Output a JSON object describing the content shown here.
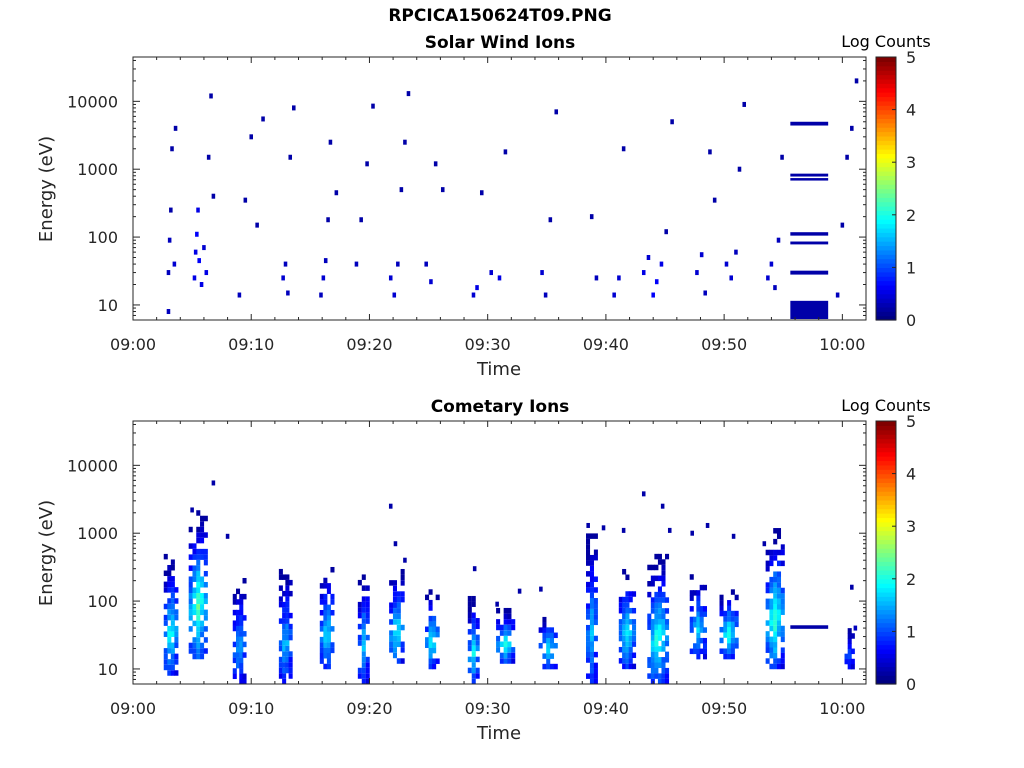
{
  "figure": {
    "title": "RPCICA150624T09.PNG"
  },
  "chart_data": [
    {
      "type": "heatmap",
      "title": "Solar Wind Ions",
      "xlabel": "Time",
      "ylabel": "Energy (eV)",
      "x_ticks": [
        "09:00",
        "09:10",
        "09:20",
        "09:30",
        "09:40",
        "09:50",
        "10:00"
      ],
      "x_range_minutes": [
        0,
        62
      ],
      "y_scale": "log",
      "y_range": [
        6,
        45000
      ],
      "y_ticks": [
        10,
        100,
        1000,
        10000
      ],
      "y_tick_labels": [
        "10",
        "100",
        "1000",
        "10000"
      ],
      "colorbar": {
        "label": "Log Counts",
        "range": [
          0,
          5
        ],
        "ticks": [
          "0",
          "1",
          "2",
          "3",
          "4",
          "5"
        ],
        "colormap": "jet"
      },
      "cells": [
        [
          3.0,
          8,
          0.3
        ],
        [
          3.0,
          30,
          0.3
        ],
        [
          3.1,
          90,
          0.3
        ],
        [
          3.2,
          250,
          0.2
        ],
        [
          3.3,
          2000,
          0.2
        ],
        [
          3.5,
          40,
          0.4
        ],
        [
          3.6,
          4000,
          0.2
        ],
        [
          5.2,
          25,
          0.5
        ],
        [
          5.3,
          60,
          0.5
        ],
        [
          5.4,
          110,
          0.6
        ],
        [
          5.5,
          250,
          0.5
        ],
        [
          5.6,
          45,
          0.6
        ],
        [
          5.8,
          20,
          0.5
        ],
        [
          6.0,
          70,
          0.4
        ],
        [
          6.2,
          30,
          0.5
        ],
        [
          6.4,
          1500,
          0.2
        ],
        [
          6.6,
          12000,
          0.2
        ],
        [
          6.8,
          400,
          0.2
        ],
        [
          9.0,
          14,
          0.3
        ],
        [
          9.5,
          350,
          0.2
        ],
        [
          10.0,
          3000,
          0.2
        ],
        [
          10.5,
          150,
          0.2
        ],
        [
          11.0,
          5500,
          0.2
        ],
        [
          12.7,
          25,
          0.4
        ],
        [
          12.9,
          40,
          0.3
        ],
        [
          13.1,
          15,
          0.3
        ],
        [
          13.3,
          1500,
          0.2
        ],
        [
          13.6,
          8000,
          0.2
        ],
        [
          15.9,
          14,
          0.3
        ],
        [
          16.1,
          25,
          0.4
        ],
        [
          16.3,
          45,
          0.3
        ],
        [
          16.5,
          180,
          0.2
        ],
        [
          16.7,
          2500,
          0.2
        ],
        [
          17.2,
          450,
          0.2
        ],
        [
          18.9,
          40,
          0.3
        ],
        [
          19.3,
          180,
          0.2
        ],
        [
          19.8,
          1200,
          0.2
        ],
        [
          20.3,
          8500,
          0.2
        ],
        [
          21.8,
          25,
          0.4
        ],
        [
          22.1,
          14,
          0.4
        ],
        [
          22.4,
          40,
          0.3
        ],
        [
          22.7,
          500,
          0.2
        ],
        [
          23.0,
          2500,
          0.2
        ],
        [
          23.3,
          13000,
          0.2
        ],
        [
          24.8,
          40,
          0.3
        ],
        [
          25.2,
          22,
          0.4
        ],
        [
          25.6,
          1200,
          0.2
        ],
        [
          26.2,
          500,
          0.2
        ],
        [
          28.8,
          14,
          0.4
        ],
        [
          29.1,
          18,
          0.5
        ],
        [
          29.5,
          450,
          0.2
        ],
        [
          30.3,
          30,
          0.4
        ],
        [
          31.0,
          25,
          0.5
        ],
        [
          31.5,
          1800,
          0.2
        ],
        [
          34.6,
          30,
          0.4
        ],
        [
          34.9,
          14,
          0.3
        ],
        [
          35.3,
          180,
          0.2
        ],
        [
          35.8,
          7000,
          0.2
        ],
        [
          38.8,
          200,
          0.2
        ],
        [
          39.2,
          25,
          0.3
        ],
        [
          40.7,
          14,
          0.4
        ],
        [
          41.1,
          25,
          0.4
        ],
        [
          41.5,
          2000,
          0.2
        ],
        [
          43.2,
          30,
          0.5
        ],
        [
          43.6,
          50,
          0.4
        ],
        [
          44.0,
          14,
          0.6
        ],
        [
          44.3,
          22,
          0.6
        ],
        [
          44.7,
          40,
          0.5
        ],
        [
          45.1,
          120,
          0.2
        ],
        [
          45.6,
          5000,
          0.2
        ],
        [
          47.7,
          30,
          0.4
        ],
        [
          48.1,
          55,
          0.4
        ],
        [
          48.4,
          15,
          0.3
        ],
        [
          48.8,
          1800,
          0.2
        ],
        [
          49.2,
          350,
          0.2
        ],
        [
          50.2,
          40,
          0.4
        ],
        [
          50.6,
          25,
          0.4
        ],
        [
          51.0,
          60,
          0.3
        ],
        [
          51.3,
          1000,
          0.2
        ],
        [
          51.7,
          9000,
          0.2
        ],
        [
          53.7,
          25,
          0.4
        ],
        [
          54.0,
          40,
          0.4
        ],
        [
          54.3,
          18,
          0.3
        ],
        [
          54.6,
          90,
          0.3
        ],
        [
          54.9,
          1500,
          0.2
        ],
        [
          59.6,
          14,
          0.3
        ],
        [
          60.0,
          150,
          0.2
        ],
        [
          60.4,
          1500,
          0.2
        ],
        [
          60.8,
          4000,
          0.2
        ],
        [
          61.2,
          20000,
          0.2
        ]
      ],
      "bands": [
        {
          "t_start": 55.6,
          "t_end": 58.8,
          "e_low": 4400,
          "e_high": 5000,
          "value": 0.2
        },
        {
          "t_start": 55.6,
          "t_end": 58.8,
          "e_low": 780,
          "e_high": 860,
          "value": 0.2
        },
        {
          "t_start": 55.6,
          "t_end": 58.8,
          "e_low": 680,
          "e_high": 740,
          "value": 0.2
        },
        {
          "t_start": 55.6,
          "t_end": 58.8,
          "e_low": 105,
          "e_high": 118,
          "value": 0.2
        },
        {
          "t_start": 55.6,
          "t_end": 58.8,
          "e_low": 78,
          "e_high": 86,
          "value": 0.2
        },
        {
          "t_start": 55.6,
          "t_end": 58.8,
          "e_low": 28,
          "e_high": 32,
          "value": 0.2
        },
        {
          "t_start": 55.6,
          "t_end": 58.8,
          "e_low": 6.2,
          "e_high": 11.5,
          "value": 0.2
        }
      ]
    },
    {
      "type": "heatmap",
      "title": "Cometary Ions",
      "xlabel": "Time",
      "ylabel": "Energy (eV)",
      "x_ticks": [
        "09:00",
        "09:10",
        "09:20",
        "09:30",
        "09:40",
        "09:50",
        "10:00"
      ],
      "x_range_minutes": [
        0,
        62
      ],
      "y_scale": "log",
      "y_range": [
        6,
        45000
      ],
      "y_ticks": [
        10,
        100,
        1000,
        10000
      ],
      "y_tick_labels": [
        "10",
        "100",
        "1000",
        "10000"
      ],
      "colorbar": {
        "label": "Log Counts",
        "range": [
          0,
          5
        ],
        "ticks": [
          "0",
          "1",
          "2",
          "3",
          "4",
          "5"
        ],
        "colormap": "jet"
      },
      "bursts": [
        {
          "t": 3.2,
          "w": 1.2,
          "e_low": 8,
          "e_high": 500,
          "peak": 1.9
        },
        {
          "t": 5.5,
          "w": 1.6,
          "e_low": 14,
          "e_high": 2200,
          "peak": 2.2
        },
        {
          "t": 9.0,
          "w": 1.1,
          "e_low": 6,
          "e_high": 220,
          "peak": 1.4
        },
        {
          "t": 12.9,
          "w": 1.1,
          "e_low": 6,
          "e_high": 300,
          "peak": 1.5
        },
        {
          "t": 16.4,
          "w": 1.2,
          "e_low": 10,
          "e_high": 320,
          "peak": 1.7
        },
        {
          "t": 19.5,
          "w": 1.0,
          "e_low": 6,
          "e_high": 300,
          "peak": 1.5
        },
        {
          "t": 22.3,
          "w": 1.3,
          "e_low": 12,
          "e_high": 300,
          "peak": 1.9
        },
        {
          "t": 25.3,
          "w": 1.2,
          "e_low": 10,
          "e_high": 150,
          "peak": 1.8
        },
        {
          "t": 28.8,
          "w": 1.0,
          "e_low": 6,
          "e_high": 120,
          "peak": 1.7
        },
        {
          "t": 31.5,
          "w": 1.6,
          "e_low": 12,
          "e_high": 80,
          "peak": 1.9
        },
        {
          "t": 35.1,
          "w": 1.6,
          "e_low": 10,
          "e_high": 70,
          "peak": 1.7
        },
        {
          "t": 38.8,
          "w": 1.0,
          "e_low": 6,
          "e_high": 1000,
          "peak": 1.5
        },
        {
          "t": 41.8,
          "w": 1.4,
          "e_low": 10,
          "e_high": 300,
          "peak": 1.8
        },
        {
          "t": 44.4,
          "w": 1.8,
          "e_low": 6,
          "e_high": 500,
          "peak": 2.0
        },
        {
          "t": 47.8,
          "w": 1.4,
          "e_low": 14,
          "e_high": 250,
          "peak": 1.6
        },
        {
          "t": 50.4,
          "w": 1.6,
          "e_low": 14,
          "e_high": 150,
          "peak": 1.9
        },
        {
          "t": 54.3,
          "w": 1.6,
          "e_low": 10,
          "e_high": 1200,
          "peak": 2.1
        },
        {
          "t": 60.6,
          "w": 0.8,
          "e_low": 10,
          "e_high": 40,
          "peak": 1.0
        }
      ],
      "cells": [
        [
          5.0,
          2200,
          0.2
        ],
        [
          6.8,
          5500,
          0.2
        ],
        [
          8.0,
          900,
          0.2
        ],
        [
          21.8,
          2500,
          0.2
        ],
        [
          22.2,
          700,
          0.2
        ],
        [
          23.0,
          400,
          0.2
        ],
        [
          28.9,
          300,
          0.2
        ],
        [
          30.8,
          90,
          0.2
        ],
        [
          32.7,
          140,
          0.2
        ],
        [
          34.5,
          150,
          0.2
        ],
        [
          38.5,
          1300,
          0.2
        ],
        [
          39.8,
          1200,
          0.2
        ],
        [
          41.5,
          1100,
          0.2
        ],
        [
          43.2,
          3800,
          0.2
        ],
        [
          44.8,
          2500,
          0.2
        ],
        [
          45.4,
          1100,
          0.2
        ],
        [
          47.3,
          1000,
          0.2
        ],
        [
          48.6,
          1300,
          0.2
        ],
        [
          50.8,
          900,
          0.2
        ],
        [
          53.4,
          700,
          0.2
        ],
        [
          60.8,
          160,
          0.2
        ],
        [
          61.1,
          40,
          0.3
        ]
      ],
      "bands": [
        {
          "t_start": 55.6,
          "t_end": 58.8,
          "e_low": 39,
          "e_high": 44,
          "value": 0.2
        }
      ]
    }
  ]
}
